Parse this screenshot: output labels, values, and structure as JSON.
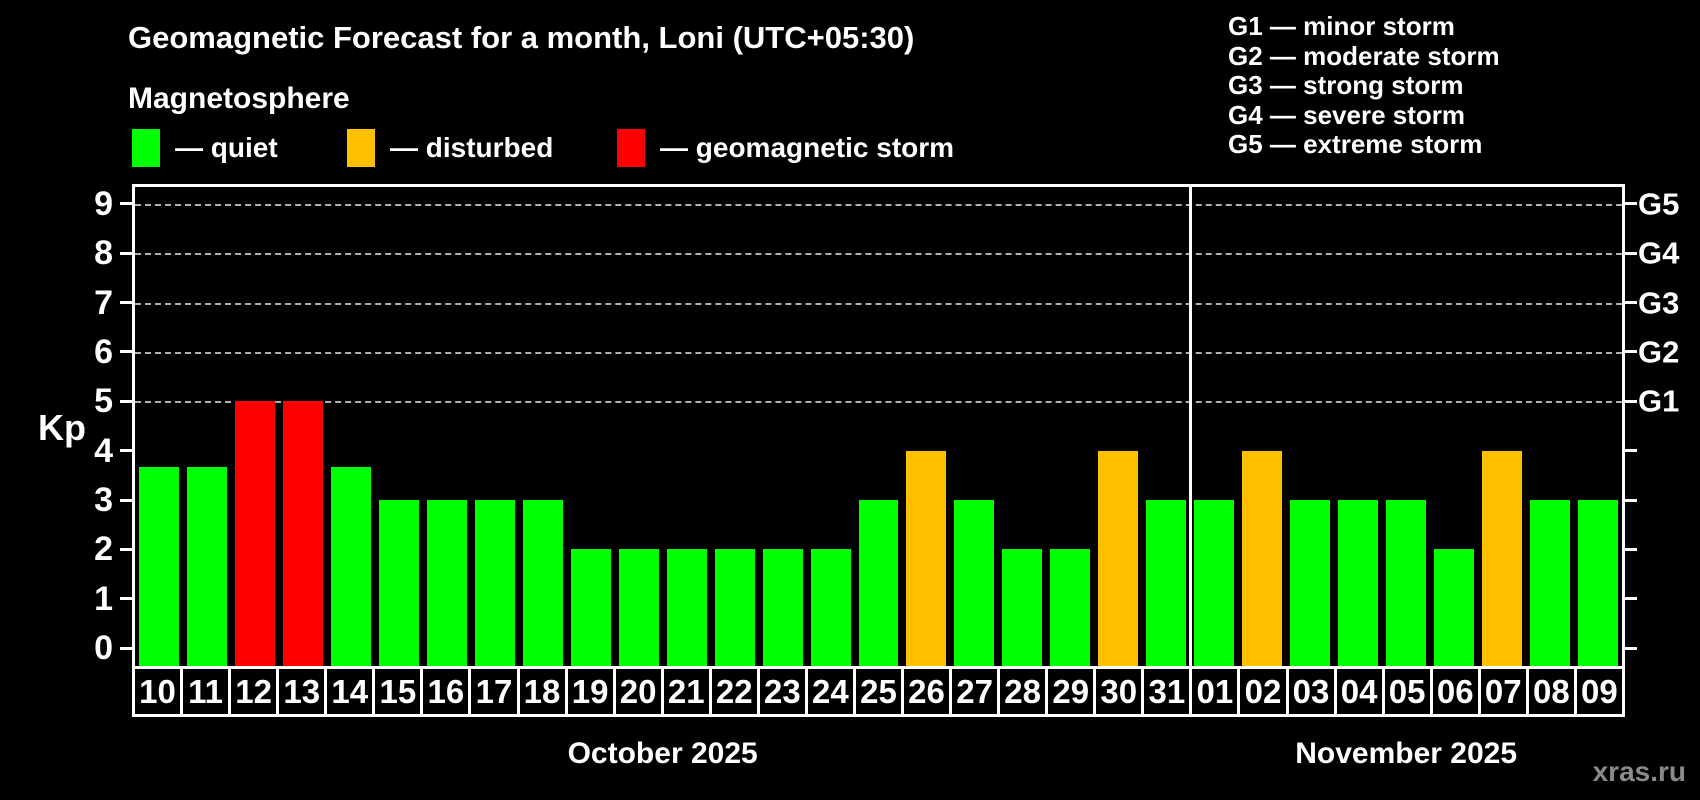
{
  "title": "Geomagnetic Forecast for a month, Loni (UTC+05:30)",
  "subtitle": "Magnetosphere",
  "legend": {
    "items": [
      {
        "id": "quiet",
        "label": "— quiet",
        "color": "#00ff00"
      },
      {
        "id": "disturbed",
        "label": "— disturbed",
        "color": "#ffc000"
      },
      {
        "id": "storm",
        "label": "— geomagnetic storm",
        "color": "#ff0000"
      }
    ]
  },
  "storm_scale_legend": [
    "G1 — minor storm",
    "G2 — moderate storm",
    "G3 — strong storm",
    "G4 — severe storm",
    "G5 — extreme storm"
  ],
  "watermark": "xras.ru",
  "chart_data": {
    "type": "bar",
    "ylabel": "Kp",
    "yticks": [
      0,
      1,
      2,
      3,
      4,
      5,
      6,
      7,
      8,
      9
    ],
    "ylim": [
      -0.36,
      9.34
    ],
    "grid": "dashed horizontal lines at Kp 5-9 only",
    "legend_position": "top",
    "g_thresholds": [
      {
        "label": "G1",
        "kp": 5
      },
      {
        "label": "G2",
        "kp": 6
      },
      {
        "label": "G3",
        "kp": 7
      },
      {
        "label": "G4",
        "kp": 8
      },
      {
        "label": "G5",
        "kp": 9
      }
    ],
    "months": [
      {
        "label": "October 2025",
        "days": 22
      },
      {
        "label": "November 2025",
        "days": 9
      }
    ],
    "categories": [
      "10",
      "11",
      "12",
      "13",
      "14",
      "15",
      "16",
      "17",
      "18",
      "19",
      "20",
      "21",
      "22",
      "23",
      "24",
      "25",
      "26",
      "27",
      "28",
      "29",
      "30",
      "31",
      "01",
      "02",
      "03",
      "04",
      "05",
      "06",
      "07",
      "08",
      "09"
    ],
    "values": [
      3.67,
      3.67,
      5,
      5,
      3.67,
      3,
      3,
      3,
      3,
      2,
      2,
      2,
      2,
      2,
      2,
      3,
      4,
      3,
      2,
      2,
      4,
      3,
      3,
      4,
      3,
      3,
      3,
      2,
      4,
      3,
      3
    ],
    "statuses": [
      "quiet",
      "quiet",
      "storm",
      "storm",
      "quiet",
      "quiet",
      "quiet",
      "quiet",
      "quiet",
      "quiet",
      "quiet",
      "quiet",
      "quiet",
      "quiet",
      "quiet",
      "quiet",
      "disturbed",
      "quiet",
      "quiet",
      "quiet",
      "disturbed",
      "quiet",
      "quiet",
      "disturbed",
      "quiet",
      "quiet",
      "quiet",
      "quiet",
      "disturbed",
      "quiet",
      "quiet"
    ]
  }
}
